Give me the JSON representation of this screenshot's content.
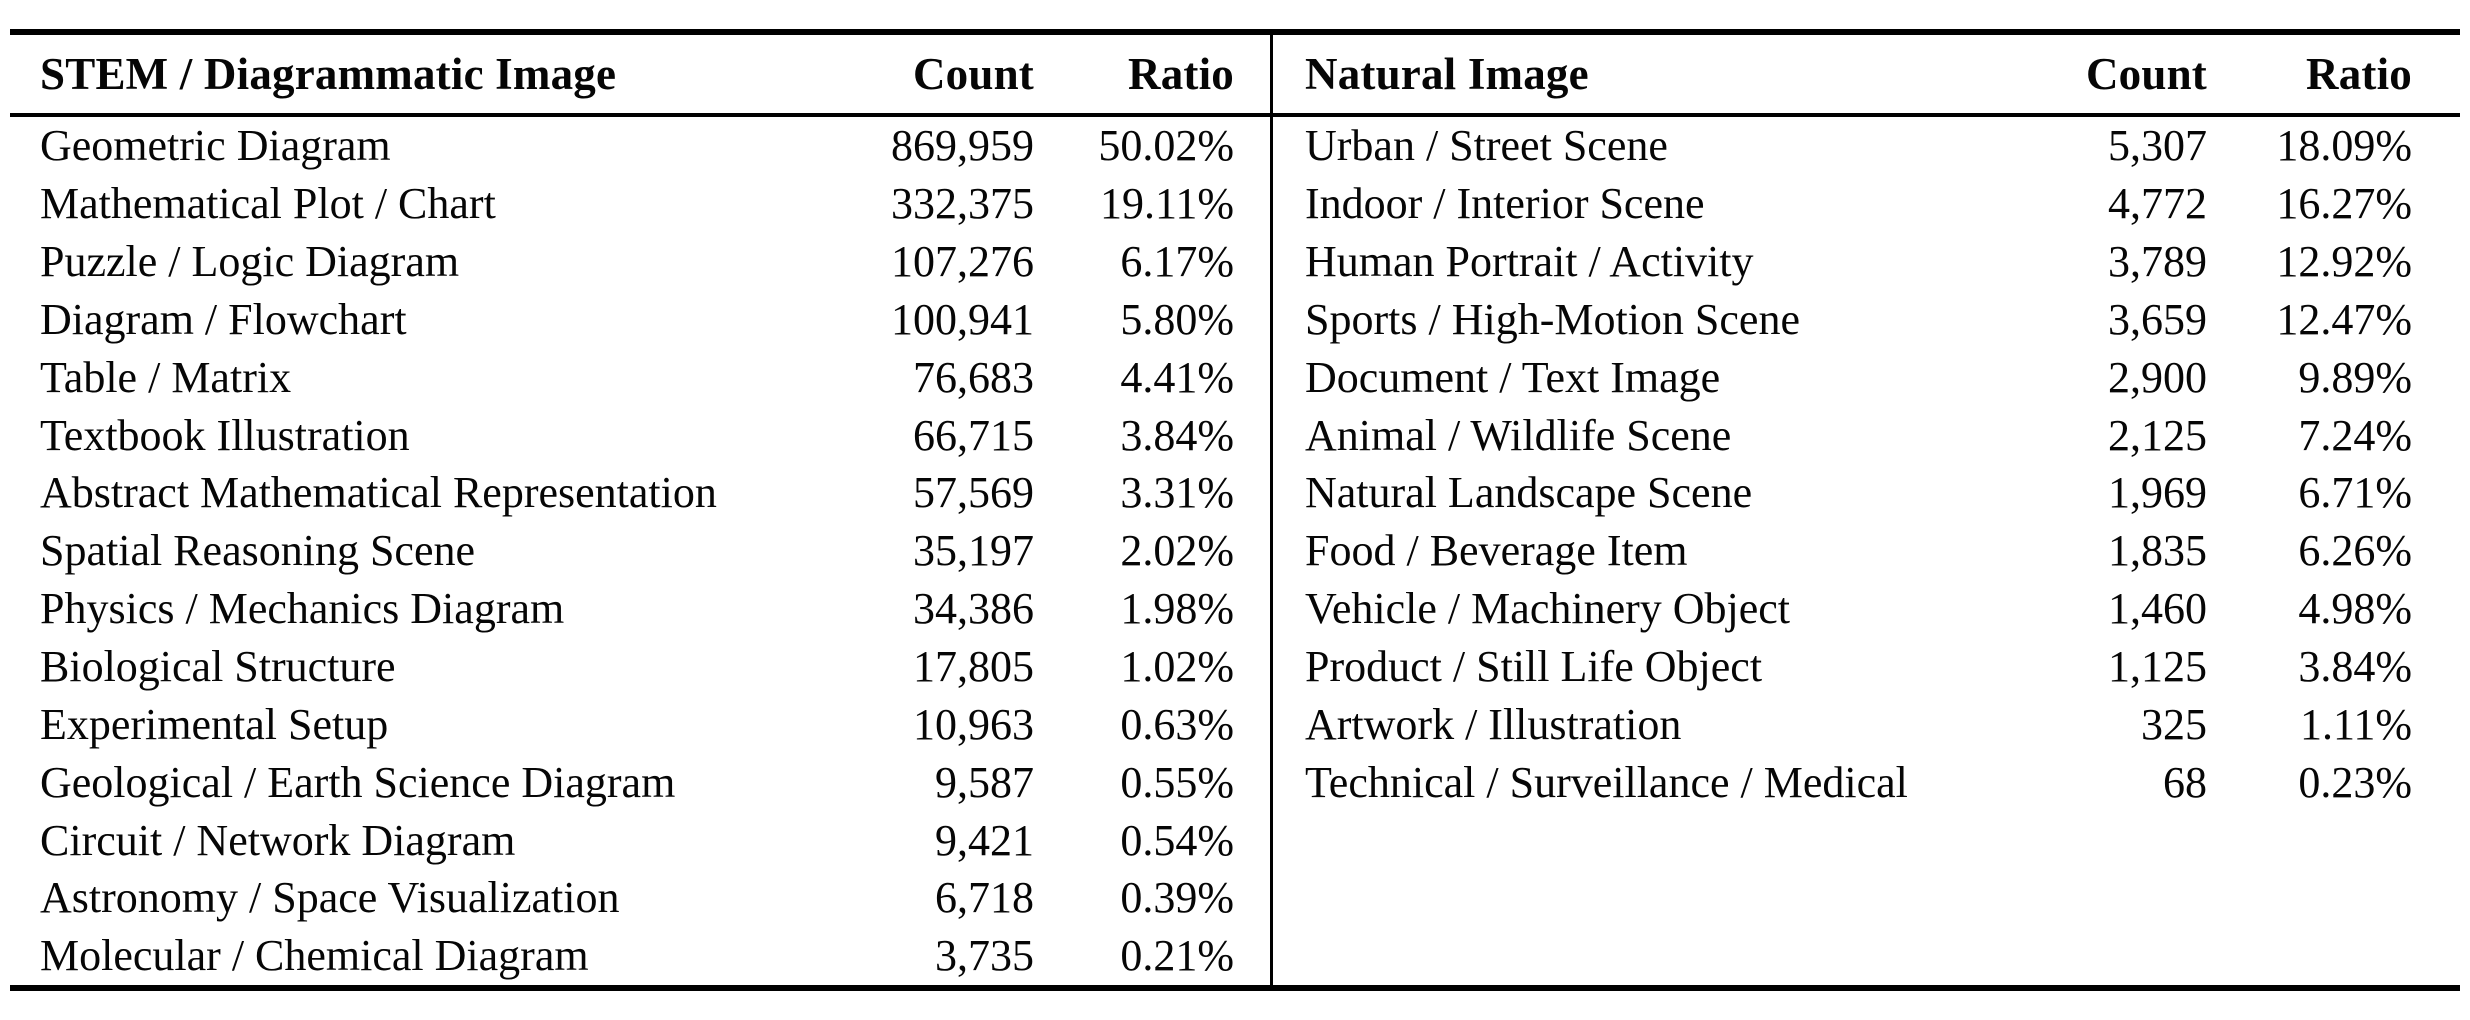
{
  "colors": {
    "background": "#ffffff",
    "text": "#060606",
    "rule": "#000000"
  },
  "table": {
    "left": {
      "title": "STEM / Diagrammatic Image",
      "count_header": "Count",
      "ratio_header": "Ratio",
      "rows": [
        {
          "category": "Geometric Diagram",
          "count": "869,959",
          "ratio": "50.02%"
        },
        {
          "category": "Mathematical Plot / Chart",
          "count": "332,375",
          "ratio": "19.11%"
        },
        {
          "category": "Puzzle / Logic Diagram",
          "count": "107,276",
          "ratio": "6.17%"
        },
        {
          "category": "Diagram / Flowchart",
          "count": "100,941",
          "ratio": "5.80%"
        },
        {
          "category": "Table / Matrix",
          "count": "76,683",
          "ratio": "4.41%"
        },
        {
          "category": "Textbook Illustration",
          "count": "66,715",
          "ratio": "3.84%"
        },
        {
          "category": "Abstract Mathematical Representation",
          "count": "57,569",
          "ratio": "3.31%"
        },
        {
          "category": "Spatial Reasoning Scene",
          "count": "35,197",
          "ratio": "2.02%"
        },
        {
          "category": "Physics / Mechanics Diagram",
          "count": "34,386",
          "ratio": "1.98%"
        },
        {
          "category": "Biological Structure",
          "count": "17,805",
          "ratio": "1.02%"
        },
        {
          "category": "Experimental Setup",
          "count": "10,963",
          "ratio": "0.63%"
        },
        {
          "category": "Geological / Earth Science Diagram",
          "count": "9,587",
          "ratio": "0.55%"
        },
        {
          "category": "Circuit / Network Diagram",
          "count": "9,421",
          "ratio": "0.54%"
        },
        {
          "category": "Astronomy / Space Visualization",
          "count": "6,718",
          "ratio": "0.39%"
        },
        {
          "category": "Molecular / Chemical Diagram",
          "count": "3,735",
          "ratio": "0.21%"
        }
      ]
    },
    "right": {
      "title": "Natural Image",
      "count_header": "Count",
      "ratio_header": "Ratio",
      "rows": [
        {
          "category": "Urban / Street Scene",
          "count": "5,307",
          "ratio": "18.09%"
        },
        {
          "category": "Indoor / Interior Scene",
          "count": "4,772",
          "ratio": "16.27%"
        },
        {
          "category": "Human Portrait / Activity",
          "count": "3,789",
          "ratio": "12.92%"
        },
        {
          "category": "Sports / High-Motion Scene",
          "count": "3,659",
          "ratio": "12.47%"
        },
        {
          "category": "Document / Text Image",
          "count": "2,900",
          "ratio": "9.89%"
        },
        {
          "category": "Animal / Wildlife Scene",
          "count": "2,125",
          "ratio": "7.24%"
        },
        {
          "category": "Natural Landscape Scene",
          "count": "1,969",
          "ratio": "6.71%"
        },
        {
          "category": "Food / Beverage Item",
          "count": "1,835",
          "ratio": "6.26%"
        },
        {
          "category": "Vehicle / Machinery Object",
          "count": "1,460",
          "ratio": "4.98%"
        },
        {
          "category": "Product / Still Life Object",
          "count": "1,125",
          "ratio": "3.84%"
        },
        {
          "category": "Artwork / Illustration",
          "count": "325",
          "ratio": "1.11%"
        },
        {
          "category": "Technical / Surveillance / Medical",
          "count": "68",
          "ratio": "0.23%"
        }
      ]
    }
  }
}
